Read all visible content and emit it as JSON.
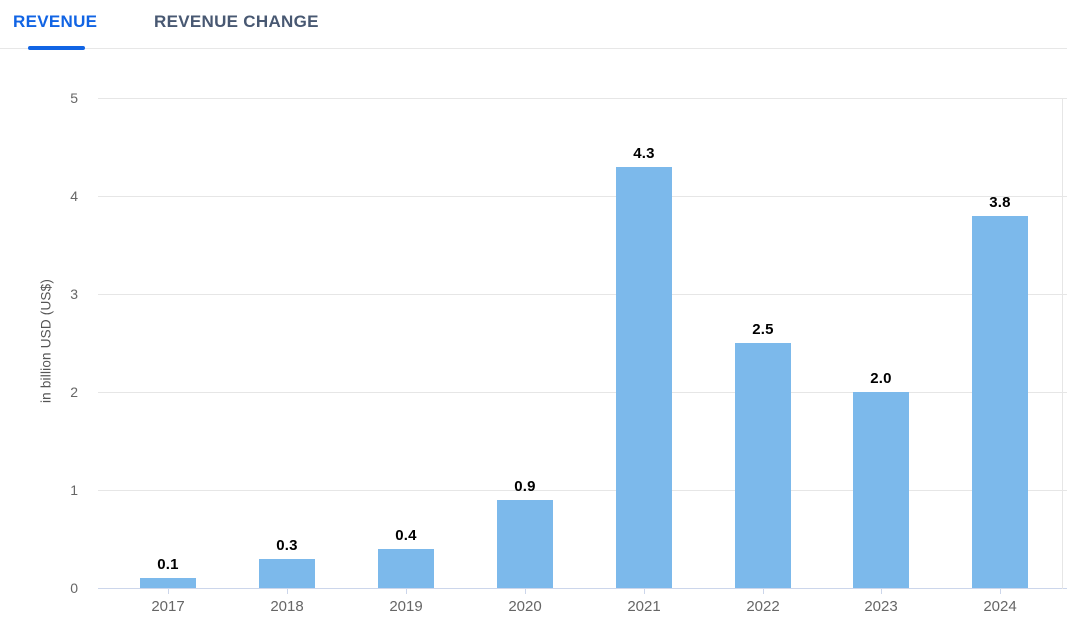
{
  "tabs": [
    {
      "label": "REVENUE",
      "active": true
    },
    {
      "label": "REVENUE CHANGE",
      "active": false
    }
  ],
  "colors": {
    "active_tab": "#1164e4",
    "inactive_tab": "#485872",
    "bar": "#7cb9eb",
    "gridline": "#e6e6e6",
    "axis_line": "#ccd6eb",
    "axis_label": "#666666",
    "data_label": "#000000"
  },
  "chart_data": {
    "type": "bar",
    "title": "",
    "categories": [
      "2017",
      "2018",
      "2019",
      "2020",
      "2021",
      "2022",
      "2023",
      "2024"
    ],
    "values": [
      0.1,
      0.3,
      0.4,
      0.9,
      4.3,
      2.5,
      2.0,
      3.8
    ],
    "value_labels": [
      "0.1",
      "0.3",
      "0.4",
      "0.9",
      "4.3",
      "2.5",
      "2.0",
      "3.8"
    ],
    "xlabel": "",
    "ylabel": "in billion USD (US$)",
    "ylim": [
      0,
      5
    ],
    "yticks": [
      "5",
      "4",
      "3",
      "2",
      "1",
      "0"
    ],
    "grid": "horizontal",
    "legend": "none"
  }
}
